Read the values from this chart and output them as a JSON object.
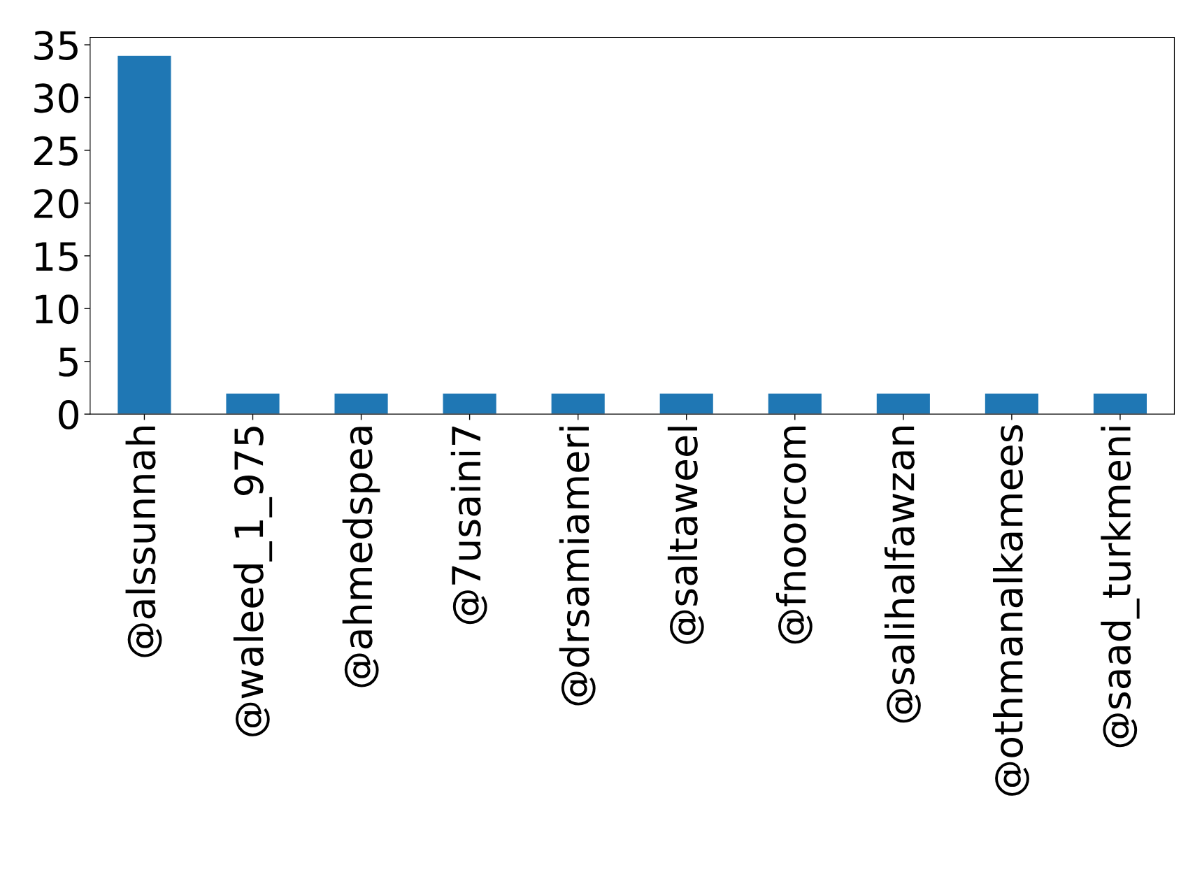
{
  "chart_data": {
    "type": "bar",
    "categories": [
      "@alssunnah",
      "@waleed_1_975",
      "@ahmedspea",
      "@7usaini7",
      "@drsamiameri",
      "@saltaweel",
      "@fnoorcom",
      "@salihalfawzan",
      "@othmanalkamees",
      "@saad_turkmeni"
    ],
    "values": [
      34,
      2,
      2,
      2,
      2,
      2,
      2,
      2,
      2,
      2
    ],
    "color": "#1f77b4",
    "ylim": [
      0,
      35.7
    ],
    "yticks": [
      0,
      5,
      10,
      15,
      20,
      25,
      30,
      35
    ],
    "grid": false,
    "legend": false
  }
}
